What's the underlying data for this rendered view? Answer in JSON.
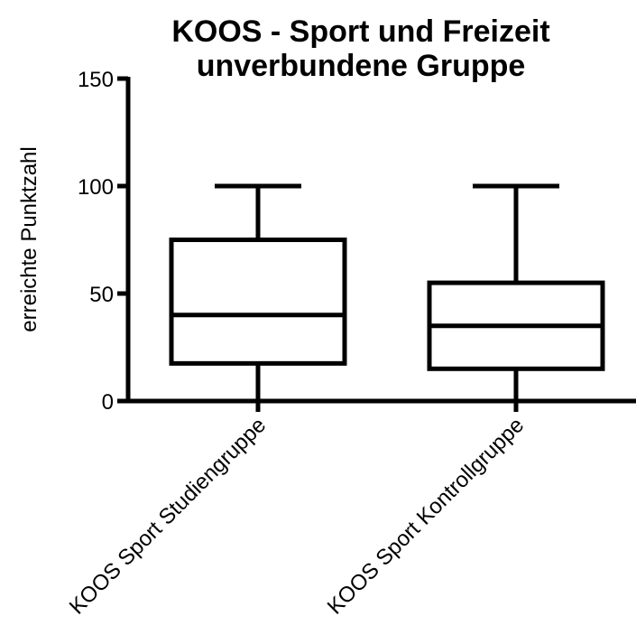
{
  "chart_data": {
    "type": "box",
    "title": [
      "KOOS - Sport und Freizeit",
      "unverbundene Gruppe"
    ],
    "y_label": "erreichte Punktzahl",
    "categories": [
      "KOOS Sport Studiengruppe",
      "KOOS Sport Kontrollgruppe"
    ],
    "boxes": [
      {
        "min": 0,
        "q1": 17.5,
        "median": 40,
        "q3": 75,
        "max": 100
      },
      {
        "min": 0,
        "q1": 15,
        "median": 35,
        "q3": 55,
        "max": 100
      }
    ],
    "color": "#000000",
    "ylim": [
      0,
      150
    ],
    "yticks": [
      0,
      50,
      100,
      150
    ],
    "grid": false
  }
}
